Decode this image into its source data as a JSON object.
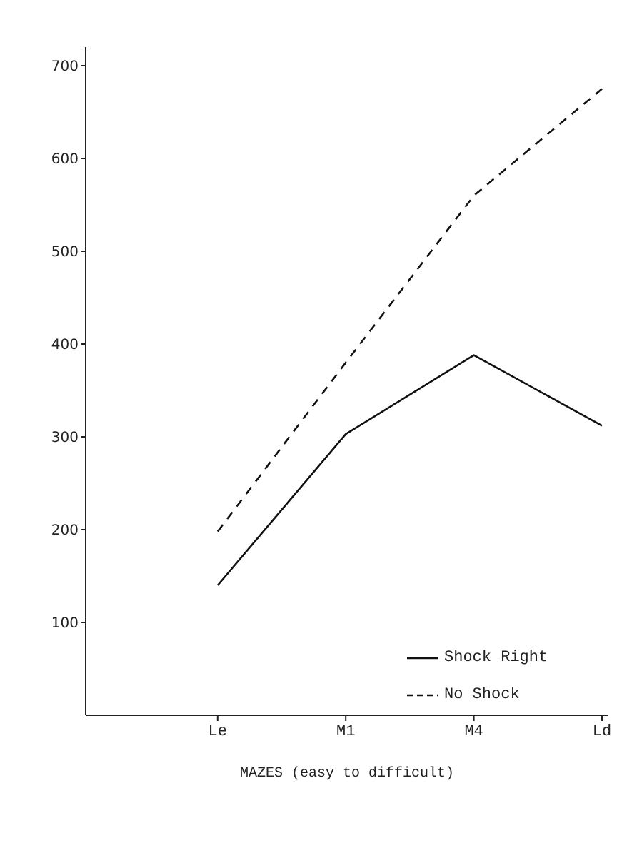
{
  "chart_data": {
    "type": "line",
    "xlabel": "MAZES (easy to difficult)",
    "categories": [
      "Le",
      "M1",
      "M4",
      "Ld"
    ],
    "series": [
      {
        "name": "Shock Right",
        "color": "#111111",
        "line_style": "solid",
        "values": [
          140,
          303,
          388,
          312
        ]
      },
      {
        "name": "No Shock",
        "color": "#111111",
        "line_style": "dashed",
        "values": [
          198,
          380,
          560,
          675
        ]
      }
    ],
    "ylim": [
      0,
      720
    ],
    "yticks": [
      100,
      200,
      300,
      400,
      500,
      600,
      700
    ],
    "grid": false,
    "legend": "bottom right",
    "marker": "none"
  }
}
